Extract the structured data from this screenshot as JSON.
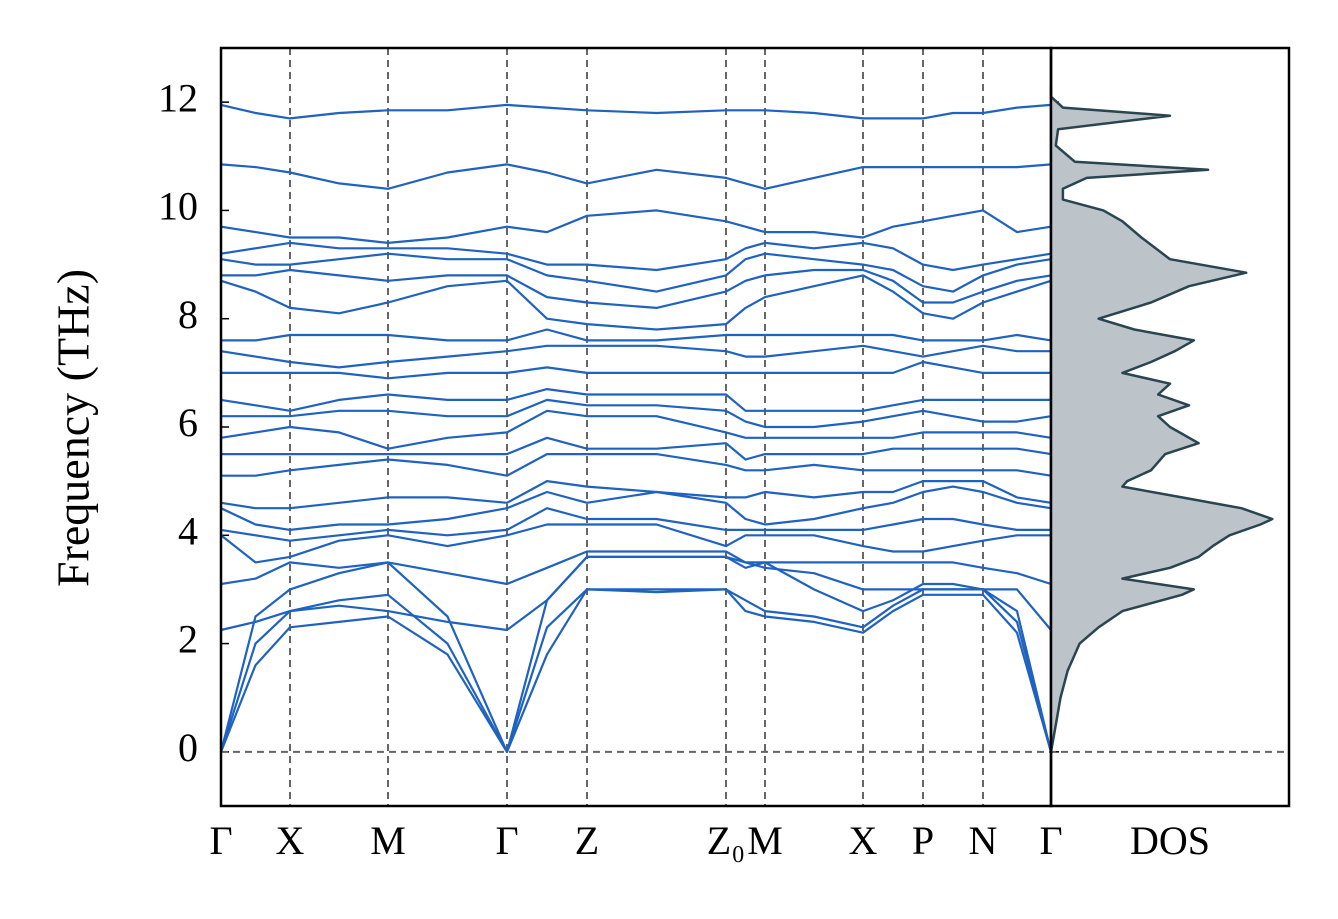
{
  "chart_data": [
    {
      "type": "line",
      "ylabel": "Frequency (THz)",
      "color": "#1f62c0",
      "grid_color": "#666666",
      "x": [
        0,
        0.345,
        0.69,
        1.18,
        1.67,
        2.265,
        2.86,
        3.26,
        3.66,
        4.355,
        5.05,
        5.245,
        5.44,
        5.93,
        6.42,
        6.72,
        7.02,
        7.32,
        7.62,
        7.96,
        8.3
      ],
      "xlim": [
        0,
        8.3
      ],
      "xticks": [
        {
          "value": 0,
          "label": "Γ"
        },
        {
          "value": 0.69,
          "label": "X"
        },
        {
          "value": 1.67,
          "label": "M"
        },
        {
          "value": 2.86,
          "label": "Γ"
        },
        {
          "value": 3.66,
          "label": "Z"
        },
        {
          "value": 5.05,
          "label": "Z₀"
        },
        {
          "value": 5.44,
          "label": "M"
        },
        {
          "value": 6.42,
          "label": "X"
        },
        {
          "value": 7.02,
          "label": "P"
        },
        {
          "value": 7.62,
          "label": "N"
        },
        {
          "value": 8.3,
          "label": "Γ"
        }
      ],
      "ylim": [
        -1,
        13
      ],
      "yticks": [
        0,
        2,
        4,
        6,
        8,
        10,
        12
      ],
      "series": [
        {
          "values": [
            0,
            1.6,
            2.3,
            2.4,
            2.5,
            1.8,
            0,
            1.8,
            3.0,
            2.95,
            3.0,
            2.6,
            2.5,
            2.4,
            2.2,
            2.6,
            2.9,
            2.9,
            2.9,
            2.2,
            0
          ]
        },
        {
          "values": [
            0,
            2.0,
            2.6,
            2.8,
            2.9,
            2.0,
            0,
            2.3,
            3.0,
            3.0,
            3.0,
            2.8,
            2.6,
            2.5,
            2.3,
            2.7,
            3.0,
            3.0,
            3.0,
            2.4,
            0
          ]
        },
        {
          "values": [
            0,
            2.5,
            3.0,
            3.3,
            3.5,
            2.5,
            0,
            2.8,
            3.6,
            3.6,
            3.6,
            3.4,
            3.5,
            3.0,
            2.6,
            2.8,
            3.1,
            3.1,
            3.0,
            2.6,
            0
          ]
        },
        {
          "values": [
            2.25,
            2.4,
            2.6,
            2.7,
            2.6,
            2.4,
            2.25,
            2.8,
            3.6,
            3.6,
            3.6,
            3.5,
            3.4,
            3.3,
            3.0,
            3.0,
            3.0,
            3.0,
            3.0,
            3.0,
            2.25
          ]
        },
        {
          "values": [
            3.1,
            3.2,
            3.5,
            3.4,
            3.5,
            3.3,
            3.1,
            3.4,
            3.7,
            3.7,
            3.7,
            3.5,
            3.5,
            3.5,
            3.5,
            3.5,
            3.5,
            3.5,
            3.4,
            3.3,
            3.1
          ]
        },
        {
          "values": [
            4.0,
            3.5,
            3.6,
            3.9,
            4.0,
            3.8,
            4.0,
            4.2,
            4.2,
            4.2,
            3.8,
            4.0,
            4.0,
            4.0,
            3.8,
            3.7,
            3.7,
            3.8,
            3.9,
            4.0,
            4.0
          ]
        },
        {
          "values": [
            4.1,
            4.0,
            3.9,
            4.0,
            4.1,
            4.0,
            4.1,
            4.5,
            4.3,
            4.3,
            4.1,
            4.1,
            4.1,
            4.1,
            4.1,
            4.2,
            4.3,
            4.3,
            4.2,
            4.1,
            4.1
          ]
        },
        {
          "values": [
            4.5,
            4.2,
            4.1,
            4.2,
            4.2,
            4.3,
            4.5,
            4.8,
            4.6,
            4.8,
            4.6,
            4.3,
            4.2,
            4.3,
            4.5,
            4.6,
            4.8,
            4.9,
            4.8,
            4.6,
            4.5
          ]
        },
        {
          "values": [
            4.6,
            4.5,
            4.5,
            4.6,
            4.7,
            4.7,
            4.6,
            5.0,
            4.9,
            4.8,
            4.7,
            4.7,
            4.8,
            4.7,
            4.8,
            4.8,
            5.0,
            5.0,
            5.0,
            4.7,
            4.6
          ]
        },
        {
          "values": [
            5.1,
            5.1,
            5.2,
            5.3,
            5.4,
            5.3,
            5.1,
            5.5,
            5.5,
            5.5,
            5.3,
            5.2,
            5.2,
            5.3,
            5.2,
            5.2,
            5.2,
            5.2,
            5.2,
            5.2,
            5.1
          ]
        },
        {
          "values": [
            5.5,
            5.5,
            5.5,
            5.5,
            5.5,
            5.5,
            5.5,
            5.8,
            5.6,
            5.6,
            5.7,
            5.4,
            5.5,
            5.5,
            5.5,
            5.6,
            5.6,
            5.6,
            5.6,
            5.6,
            5.5
          ]
        },
        {
          "values": [
            5.8,
            5.9,
            6.0,
            5.9,
            5.6,
            5.8,
            5.9,
            6.3,
            6.2,
            6.2,
            5.9,
            5.8,
            5.8,
            5.8,
            5.8,
            5.8,
            5.9,
            5.9,
            5.9,
            5.9,
            5.8
          ]
        },
        {
          "values": [
            6.2,
            6.2,
            6.2,
            6.3,
            6.3,
            6.2,
            6.2,
            6.5,
            6.4,
            6.4,
            6.3,
            6.1,
            6.0,
            6.0,
            6.1,
            6.2,
            6.3,
            6.2,
            6.1,
            6.1,
            6.2
          ]
        },
        {
          "values": [
            6.5,
            6.4,
            6.3,
            6.5,
            6.6,
            6.5,
            6.5,
            6.7,
            6.6,
            6.6,
            6.6,
            6.3,
            6.3,
            6.3,
            6.3,
            6.4,
            6.5,
            6.5,
            6.5,
            6.5,
            6.5
          ]
        },
        {
          "values": [
            7.0,
            7.0,
            7.0,
            7.0,
            6.9,
            7.0,
            7.0,
            7.1,
            7.0,
            7.0,
            7.0,
            7.0,
            7.0,
            7.0,
            7.0,
            7.0,
            7.2,
            7.1,
            7.0,
            7.0,
            7.0
          ]
        },
        {
          "values": [
            7.4,
            7.3,
            7.2,
            7.1,
            7.2,
            7.3,
            7.4,
            7.5,
            7.5,
            7.5,
            7.4,
            7.3,
            7.3,
            7.4,
            7.5,
            7.4,
            7.3,
            7.4,
            7.5,
            7.4,
            7.4
          ]
        },
        {
          "values": [
            7.6,
            7.6,
            7.7,
            7.7,
            7.7,
            7.6,
            7.6,
            7.8,
            7.6,
            7.6,
            7.7,
            7.7,
            7.7,
            7.7,
            7.7,
            7.7,
            7.6,
            7.6,
            7.6,
            7.7,
            7.6
          ]
        },
        {
          "values": [
            8.7,
            8.5,
            8.2,
            8.1,
            8.3,
            8.6,
            8.7,
            8.0,
            7.9,
            7.8,
            7.9,
            8.2,
            8.4,
            8.6,
            8.8,
            8.5,
            8.1,
            8.0,
            8.3,
            8.5,
            8.7
          ]
        },
        {
          "values": [
            8.8,
            8.8,
            8.9,
            8.8,
            8.7,
            8.8,
            8.8,
            8.4,
            8.3,
            8.2,
            8.5,
            8.7,
            8.8,
            8.9,
            8.9,
            8.7,
            8.3,
            8.3,
            8.5,
            8.7,
            8.8
          ]
        },
        {
          "values": [
            9.1,
            9.0,
            9.0,
            9.1,
            9.2,
            9.1,
            9.1,
            8.8,
            8.7,
            8.5,
            8.8,
            9.1,
            9.2,
            9.1,
            9.0,
            8.9,
            8.6,
            8.5,
            8.8,
            9.0,
            9.1
          ]
        },
        {
          "values": [
            9.2,
            9.3,
            9.4,
            9.3,
            9.3,
            9.3,
            9.2,
            9.0,
            9.0,
            8.9,
            9.1,
            9.3,
            9.4,
            9.3,
            9.4,
            9.3,
            9.0,
            8.9,
            9.0,
            9.1,
            9.2
          ]
        },
        {
          "values": [
            9.7,
            9.6,
            9.5,
            9.5,
            9.4,
            9.5,
            9.7,
            9.6,
            9.9,
            10.0,
            9.8,
            9.7,
            9.6,
            9.6,
            9.5,
            9.7,
            9.8,
            9.9,
            10.0,
            9.6,
            9.7
          ]
        },
        {
          "values": [
            10.85,
            10.8,
            10.7,
            10.5,
            10.4,
            10.7,
            10.85,
            10.7,
            10.5,
            10.75,
            10.6,
            10.5,
            10.4,
            10.6,
            10.8,
            10.8,
            10.8,
            10.8,
            10.8,
            10.8,
            10.85
          ]
        },
        {
          "values": [
            11.95,
            11.8,
            11.7,
            11.8,
            11.85,
            11.85,
            11.95,
            11.9,
            11.85,
            11.8,
            11.85,
            11.85,
            11.85,
            11.8,
            11.7,
            11.7,
            11.7,
            11.8,
            11.8,
            11.9,
            11.95
          ]
        }
      ]
    },
    {
      "type": "area",
      "xlabel": "DOS",
      "color": "#bcc4ca",
      "line_color": "#2a4450",
      "xlim": [
        0,
        1
      ],
      "ylim": [
        -1,
        13
      ],
      "y": [
        0,
        0.5,
        1,
        1.5,
        2,
        2.3,
        2.6,
        2.9,
        3.0,
        3.2,
        3.4,
        3.6,
        3.8,
        4.0,
        4.2,
        4.3,
        4.5,
        4.7,
        4.9,
        5.0,
        5.2,
        5.5,
        5.7,
        6.0,
        6.2,
        6.4,
        6.6,
        6.8,
        7.0,
        7.2,
        7.4,
        7.6,
        7.8,
        8.0,
        8.3,
        8.6,
        8.85,
        9.1,
        9.5,
        9.8,
        10.0,
        10.2,
        10.4,
        10.6,
        10.75,
        10.9,
        11.2,
        11.5,
        11.75,
        11.9,
        12.1,
        12.3
      ],
      "values": [
        0,
        0.02,
        0.04,
        0.07,
        0.12,
        0.2,
        0.3,
        0.55,
        0.6,
        0.3,
        0.5,
        0.62,
        0.68,
        0.75,
        0.88,
        0.93,
        0.8,
        0.55,
        0.3,
        0.32,
        0.42,
        0.48,
        0.62,
        0.5,
        0.45,
        0.58,
        0.45,
        0.5,
        0.3,
        0.42,
        0.52,
        0.6,
        0.35,
        0.2,
        0.42,
        0.58,
        0.82,
        0.5,
        0.38,
        0.3,
        0.22,
        0.05,
        0.05,
        0.15,
        0.66,
        0.1,
        0.02,
        0.03,
        0.5,
        0.05,
        0,
        0
      ]
    }
  ]
}
